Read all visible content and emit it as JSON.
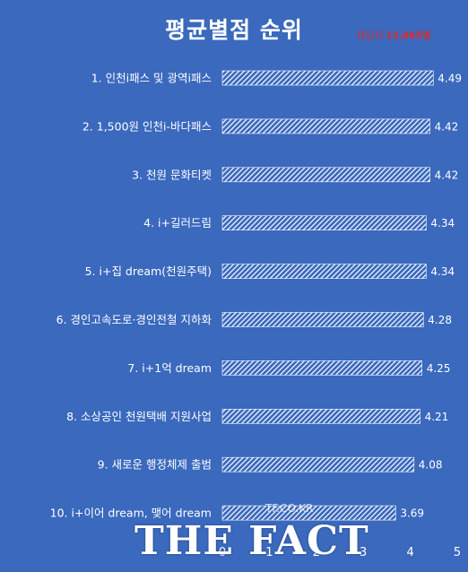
{
  "title": "평균별점 순위",
  "respondents": {
    "label": "응답자",
    "count": "12,865명"
  },
  "watermark": {
    "small": "TF.CO.KR",
    "big": "THE FACT"
  },
  "colors": {
    "background": "#3a69bd",
    "bar_stripe": "#ffffff",
    "bar_fill": "#3a69bd",
    "title": "#ffffff",
    "respondents": "#e02a2a"
  },
  "chart_data": {
    "type": "bar",
    "orientation": "horizontal",
    "title": "평균별점 순위",
    "categories": [
      "1. 인천i패스 및 광역i패스",
      "2. 1,500원 인천i-바다패스",
      "3. 천원 문화티켓",
      "4. i+길러드림",
      "5. i+집 dream(천원주택)",
      "6. 경인고속도로·경인전철 지하화",
      "7. i+1억 dream",
      "8. 소상공인 천원택배 지원사업",
      "9. 새로운 행정체제 출범",
      "10. i+이어 dream, 맺어 dream"
    ],
    "values": [
      4.49,
      4.42,
      4.42,
      4.34,
      4.34,
      4.28,
      4.25,
      4.21,
      4.08,
      3.69
    ],
    "value_labels": [
      "4.49",
      "4.42",
      "4.42",
      "4.34",
      "4.34",
      "4.28",
      "4.25",
      "4.21",
      "4.08",
      "3.69"
    ],
    "xlim": [
      0,
      5
    ],
    "xticks": [
      "0",
      "1",
      "2",
      "3",
      "4",
      "5"
    ],
    "grid": false,
    "legend": "none"
  }
}
